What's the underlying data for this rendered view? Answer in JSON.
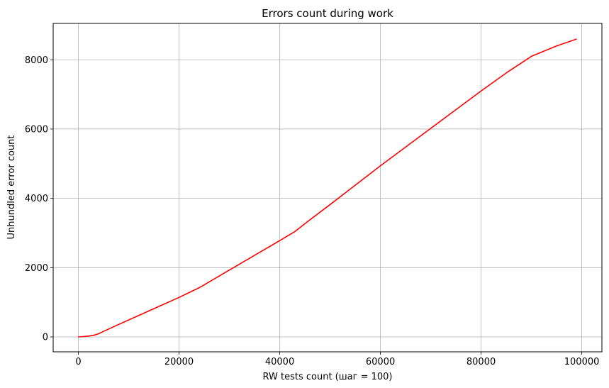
{
  "chart_data": {
    "type": "line",
    "title": "Errors count during work",
    "xlabel": "RW tests count (шаг = 100)",
    "ylabel": "Unhundled error count",
    "xlim": [
      -5000,
      104000
    ],
    "ylim": [
      -430,
      9050
    ],
    "xticks": [
      0,
      20000,
      40000,
      60000,
      80000,
      100000
    ],
    "yticks": [
      0,
      2000,
      4000,
      6000,
      8000
    ],
    "grid": true,
    "series": [
      {
        "color": "#ff0000",
        "x": [
          0,
          1000,
          2000,
          3000,
          4000,
          5000,
          8000,
          12000,
          16000,
          20000,
          24000,
          28000,
          32000,
          36000,
          40000,
          43000,
          46000,
          50000,
          55000,
          60000,
          65000,
          70000,
          75000,
          80000,
          85000,
          90000,
          95000,
          99000
        ],
        "y": [
          0,
          10,
          25,
          45,
          90,
          160,
          360,
          620,
          880,
          1140,
          1420,
          1760,
          2100,
          2440,
          2780,
          3040,
          3380,
          3820,
          4380,
          4940,
          5480,
          6020,
          6560,
          7100,
          7620,
          8100,
          8400,
          8600
        ]
      }
    ]
  }
}
